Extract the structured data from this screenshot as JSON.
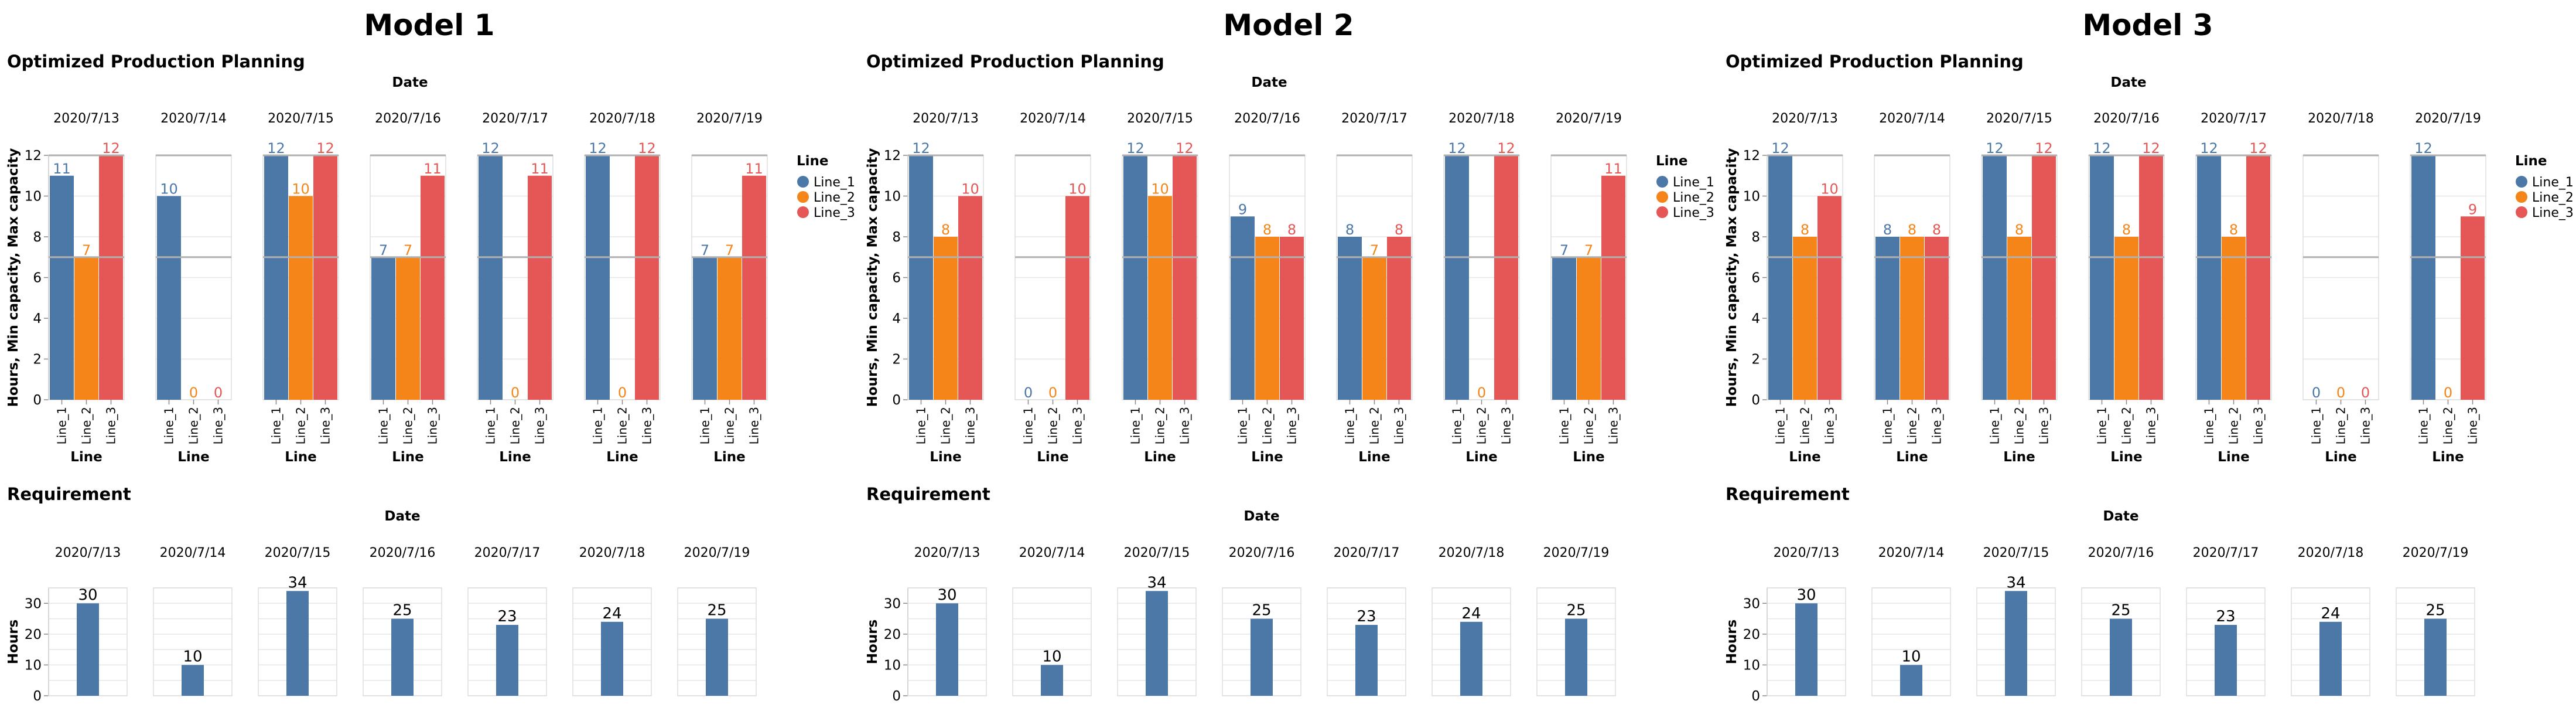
{
  "colors": {
    "Line_1": "#4c78a8",
    "Line_2": "#f58518",
    "Line_3": "#e45756",
    "requirement": "#4c78a8",
    "capacity_rule": "#b0b0b0",
    "grid": "#e6e6e6",
    "frame": "#dddddd",
    "axis": "#888888"
  },
  "common": {
    "dates": [
      "2020/7/13",
      "2020/7/14",
      "2020/7/15",
      "2020/7/16",
      "2020/7/17",
      "2020/7/18",
      "2020/7/19"
    ],
    "lines": [
      "Line_1",
      "Line_2",
      "Line_3"
    ],
    "production_title": "Optimized Production Planning",
    "requirement_title": "Requirement",
    "facet_header": "Date",
    "production_ylabel": "Hours, Min capacity, Max capacity",
    "production_xlabel": "Line",
    "requirement_ylabel": "Hours",
    "legend_title": "Line",
    "production_yticks": [
      "0",
      "2",
      "4",
      "6",
      "8",
      "10",
      "12"
    ],
    "requirement_yticks": [
      "0",
      "10",
      "20",
      "30"
    ]
  },
  "chart_data": [
    {
      "type": "bar",
      "title": "Model 1",
      "production": {
        "title": "Optimized Production Planning",
        "ylim": [
          0,
          12
        ],
        "min_capacity": 7,
        "max_capacity": 12,
        "legend_placement": "right",
        "grid": true,
        "values": [
          [
            11,
            7,
            12
          ],
          [
            10,
            0,
            0
          ],
          [
            12,
            10,
            12
          ],
          [
            7,
            7,
            11
          ],
          [
            12,
            0,
            11
          ],
          [
            12,
            0,
            12
          ],
          [
            7,
            7,
            11
          ]
        ]
      },
      "requirement": {
        "title": "Requirement",
        "ylim": [
          0,
          35
        ],
        "grid": true,
        "values": [
          30,
          10,
          34,
          25,
          23,
          24,
          25
        ]
      }
    },
    {
      "type": "bar",
      "title": "Model 2",
      "production": {
        "title": "Optimized Production Planning",
        "ylim": [
          0,
          12
        ],
        "min_capacity": 7,
        "max_capacity": 12,
        "legend_placement": "right",
        "grid": true,
        "values": [
          [
            12,
            8,
            10
          ],
          [
            0,
            0,
            10
          ],
          [
            12,
            10,
            12
          ],
          [
            9,
            8,
            8
          ],
          [
            8,
            7,
            8
          ],
          [
            12,
            0,
            12
          ],
          [
            7,
            7,
            11
          ]
        ]
      },
      "requirement": {
        "title": "Requirement",
        "ylim": [
          0,
          35
        ],
        "grid": true,
        "values": [
          30,
          10,
          34,
          25,
          23,
          24,
          25
        ]
      }
    },
    {
      "type": "bar",
      "title": "Model 3",
      "production": {
        "title": "Optimized Production Planning",
        "ylim": [
          0,
          12
        ],
        "min_capacity": 7,
        "max_capacity": 12,
        "legend_placement": "right",
        "grid": true,
        "values": [
          [
            12,
            8,
            10
          ],
          [
            8,
            8,
            8
          ],
          [
            12,
            8,
            12
          ],
          [
            12,
            8,
            12
          ],
          [
            12,
            8,
            12
          ],
          [
            0,
            0,
            0
          ],
          [
            12,
            0,
            9
          ]
        ]
      },
      "requirement": {
        "title": "Requirement",
        "ylim": [
          0,
          35
        ],
        "grid": true,
        "values": [
          30,
          10,
          34,
          25,
          23,
          24,
          25
        ]
      }
    }
  ]
}
